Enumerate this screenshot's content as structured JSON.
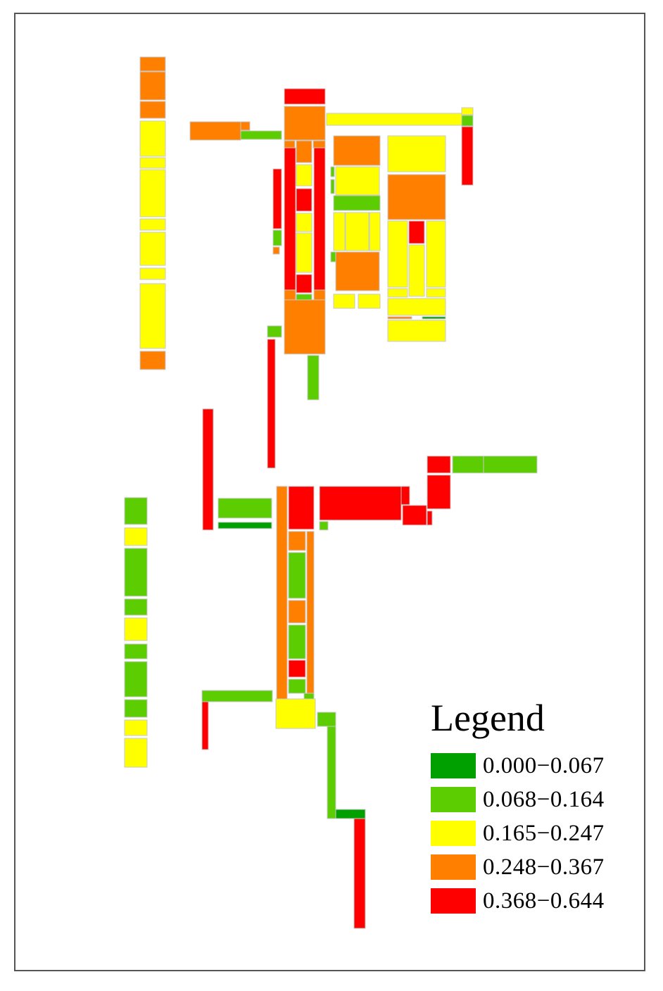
{
  "colors": {
    "c0": "#00a000",
    "c1": "#5ccd00",
    "c2": "#ffff00",
    "c3": "#ff8000",
    "c4": "#ff0000",
    "outline": "#c8c8c8"
  },
  "legend": {
    "title": "Legend",
    "items": [
      {
        "label": "0.000−0.067",
        "class": "c0"
      },
      {
        "label": "0.068−0.164",
        "class": "c1"
      },
      {
        "label": "0.165−0.247",
        "class": "c2"
      },
      {
        "label": "0.248−0.367",
        "class": "c3"
      },
      {
        "label": "0.368−0.644",
        "class": "c4"
      }
    ]
  }
}
